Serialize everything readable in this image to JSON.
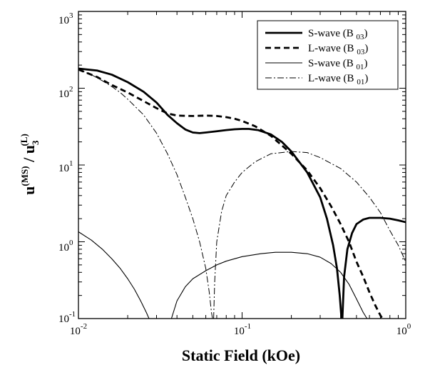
{
  "chart_data": {
    "type": "line",
    "xlabel": "Static Field (kOe)",
    "ylabel": {
      "base1": "u",
      "sup1": "(MS)",
      "sep": " / ",
      "base2": "u",
      "sub2": "3",
      "sup2": "(L)"
    },
    "xscale": "log",
    "yscale": "log",
    "xlim": [
      0.01,
      1
    ],
    "ylim": [
      0.1,
      1000
    ],
    "grid": false,
    "legend_position": "top-right",
    "x_ticks": [
      {
        "base": "10",
        "exp": "-2"
      },
      {
        "base": "10",
        "exp": "-1"
      },
      {
        "base": "10",
        "exp": "0"
      }
    ],
    "y_ticks": [
      {
        "base": "10",
        "exp": "-1"
      },
      {
        "base": "10",
        "exp": "0"
      },
      {
        "base": "10",
        "exp": "1"
      },
      {
        "base": "10",
        "exp": "2"
      },
      {
        "base": "10",
        "exp": "3"
      }
    ],
    "series": [
      {
        "name": "S-wave (B 03)",
        "style": "thick-solid",
        "points": [
          [
            0.01,
            180
          ],
          [
            0.013,
            170
          ],
          [
            0.016,
            150
          ],
          [
            0.02,
            120
          ],
          [
            0.025,
            90
          ],
          [
            0.03,
            65
          ],
          [
            0.035,
            45
          ],
          [
            0.04,
            35
          ],
          [
            0.045,
            29
          ],
          [
            0.05,
            26.5
          ],
          [
            0.055,
            26
          ],
          [
            0.06,
            26.5
          ],
          [
            0.07,
            27.5
          ],
          [
            0.08,
            28.5
          ],
          [
            0.09,
            29.2
          ],
          [
            0.1,
            29.5
          ],
          [
            0.11,
            29.5
          ],
          [
            0.125,
            28.5
          ],
          [
            0.15,
            25
          ],
          [
            0.175,
            20
          ],
          [
            0.2,
            15
          ],
          [
            0.25,
            8
          ],
          [
            0.3,
            3.8
          ],
          [
            0.33,
            2
          ],
          [
            0.36,
            0.9
          ],
          [
            0.38,
            0.45
          ],
          [
            0.395,
            0.2
          ],
          [
            0.405,
            0.1
          ]
        ]
      },
      {
        "name": "S-wave (B 03)",
        "style": "thick-solid",
        "points": [
          [
            0.41,
            0.1
          ],
          [
            0.42,
            0.35
          ],
          [
            0.44,
            0.8
          ],
          [
            0.47,
            1.3
          ],
          [
            0.5,
            1.7
          ],
          [
            0.55,
            1.95
          ],
          [
            0.6,
            2.05
          ],
          [
            0.7,
            2.05
          ],
          [
            0.8,
            2.0
          ],
          [
            0.9,
            1.9
          ],
          [
            1.0,
            1.8
          ]
        ]
      },
      {
        "name": "L-wave (B 03)",
        "style": "thick-dashed",
        "points": [
          [
            0.01,
            175
          ],
          [
            0.013,
            140
          ],
          [
            0.016,
            110
          ],
          [
            0.02,
            88
          ],
          [
            0.025,
            68
          ],
          [
            0.03,
            55
          ],
          [
            0.035,
            47
          ],
          [
            0.04,
            44
          ],
          [
            0.05,
            43.5
          ],
          [
            0.06,
            44
          ],
          [
            0.07,
            43.5
          ],
          [
            0.08,
            42
          ],
          [
            0.09,
            40
          ],
          [
            0.1,
            37.5
          ],
          [
            0.12,
            32
          ],
          [
            0.15,
            24
          ],
          [
            0.2,
            14
          ],
          [
            0.25,
            8.5
          ],
          [
            0.3,
            5
          ],
          [
            0.35,
            2.9
          ],
          [
            0.4,
            1.7
          ],
          [
            0.45,
            1.0
          ],
          [
            0.5,
            0.55
          ],
          [
            0.55,
            0.35
          ],
          [
            0.6,
            0.22
          ],
          [
            0.65,
            0.15
          ],
          [
            0.7,
            0.11
          ],
          [
            0.72,
            0.1
          ]
        ]
      },
      {
        "name": "S-wave (B 01)",
        "style": "thin-solid",
        "points": [
          [
            0.01,
            1.35
          ],
          [
            0.012,
            1.05
          ],
          [
            0.014,
            0.8
          ],
          [
            0.016,
            0.6
          ],
          [
            0.018,
            0.45
          ],
          [
            0.02,
            0.33
          ],
          [
            0.022,
            0.24
          ],
          [
            0.024,
            0.17
          ],
          [
            0.026,
            0.12
          ],
          [
            0.027,
            0.1
          ]
        ]
      },
      {
        "name": "S-wave (B 01)",
        "style": "thin-solid",
        "points": [
          [
            0.037,
            0.1
          ],
          [
            0.04,
            0.17
          ],
          [
            0.045,
            0.26
          ],
          [
            0.05,
            0.33
          ],
          [
            0.06,
            0.42
          ],
          [
            0.07,
            0.5
          ],
          [
            0.08,
            0.56
          ],
          [
            0.1,
            0.64
          ],
          [
            0.13,
            0.7
          ],
          [
            0.16,
            0.73
          ],
          [
            0.2,
            0.73
          ],
          [
            0.25,
            0.7
          ],
          [
            0.3,
            0.63
          ],
          [
            0.35,
            0.52
          ],
          [
            0.4,
            0.4
          ],
          [
            0.45,
            0.28
          ],
          [
            0.5,
            0.18
          ],
          [
            0.55,
            0.12
          ],
          [
            0.58,
            0.1
          ]
        ]
      },
      {
        "name": "L-wave (B 01)",
        "style": "thin-dashdot",
        "points": [
          [
            0.01,
            175
          ],
          [
            0.012,
            150
          ],
          [
            0.014,
            125
          ],
          [
            0.016,
            105
          ],
          [
            0.018,
            88
          ],
          [
            0.02,
            72
          ],
          [
            0.025,
            45
          ],
          [
            0.03,
            26
          ],
          [
            0.035,
            14
          ],
          [
            0.04,
            7.5
          ],
          [
            0.045,
            3.8
          ],
          [
            0.05,
            2.0
          ],
          [
            0.055,
            1.0
          ],
          [
            0.06,
            0.45
          ],
          [
            0.063,
            0.22
          ],
          [
            0.065,
            0.12
          ],
          [
            0.066,
            0.1
          ]
        ]
      },
      {
        "name": "L-wave (B 01)",
        "style": "thin-dashdot",
        "points": [
          [
            0.067,
            0.1
          ],
          [
            0.068,
            0.3
          ],
          [
            0.07,
            1.0
          ],
          [
            0.075,
            2.5
          ],
          [
            0.08,
            4.0
          ],
          [
            0.09,
            6.0
          ],
          [
            0.1,
            8.0
          ],
          [
            0.12,
            11
          ],
          [
            0.15,
            14
          ],
          [
            0.2,
            15
          ],
          [
            0.25,
            14.5
          ],
          [
            0.3,
            12.5
          ],
          [
            0.4,
            9.0
          ],
          [
            0.5,
            6.0
          ],
          [
            0.6,
            3.8
          ],
          [
            0.7,
            2.4
          ],
          [
            0.8,
            1.4
          ],
          [
            0.9,
            0.9
          ],
          [
            1.0,
            0.55
          ]
        ]
      }
    ],
    "legend": [
      {
        "label": "S-wave (B",
        "sub": "03",
        "close": ")",
        "style": "thick-solid"
      },
      {
        "label": "L-wave (B",
        "sub": "03",
        "close": ")",
        "style": "thick-dashed"
      },
      {
        "label": "S-wave (B",
        "sub": "01",
        "close": ")",
        "style": "thin-solid"
      },
      {
        "label": "L-wave (B",
        "sub": "01",
        "close": ")",
        "style": "thin-dashdot"
      }
    ],
    "colors": {
      "line": "#000000",
      "background": "#ffffff"
    }
  }
}
